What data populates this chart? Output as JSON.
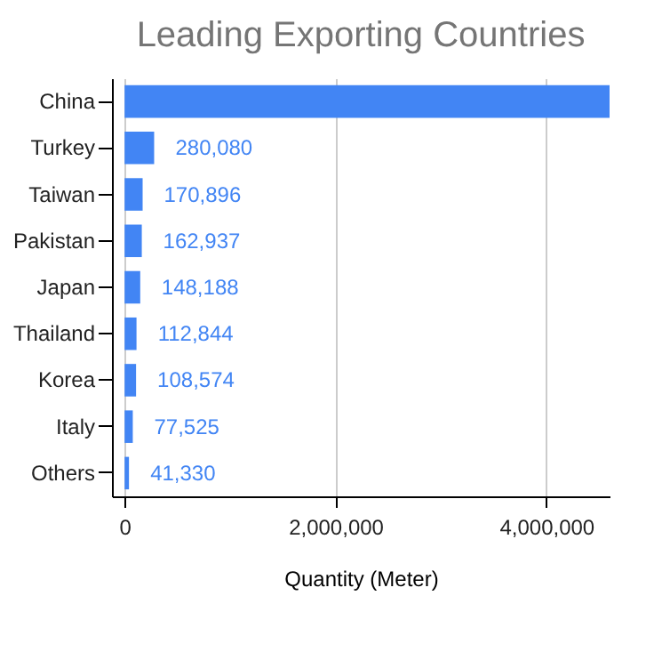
{
  "chart_data": {
    "type": "bar",
    "orientation": "horizontal",
    "title": "Leading Exporting Countries",
    "xlabel": "Quantity (Meter)",
    "categories": [
      "China",
      "Turkey",
      "Taiwan",
      "Pakistan",
      "Japan",
      "Thailand",
      "Korea",
      "Italy",
      "Others"
    ],
    "values": [
      4600000,
      280080,
      170896,
      162937,
      148188,
      112844,
      108574,
      77525,
      41330
    ],
    "value_labels": [
      null,
      "280,080",
      "170,896",
      "162,937",
      "148,188",
      "112,844",
      "108,574",
      "77,525",
      "41,330"
    ],
    "color": "#4285f4",
    "xlim": [
      -120000,
      4600000
    ],
    "xticks": [
      0,
      {
        "value": 2000000,
        "label": "2,000,000"
      },
      {
        "value": 4000000,
        "label": "4,000,000"
      }
    ],
    "grid": "x"
  }
}
